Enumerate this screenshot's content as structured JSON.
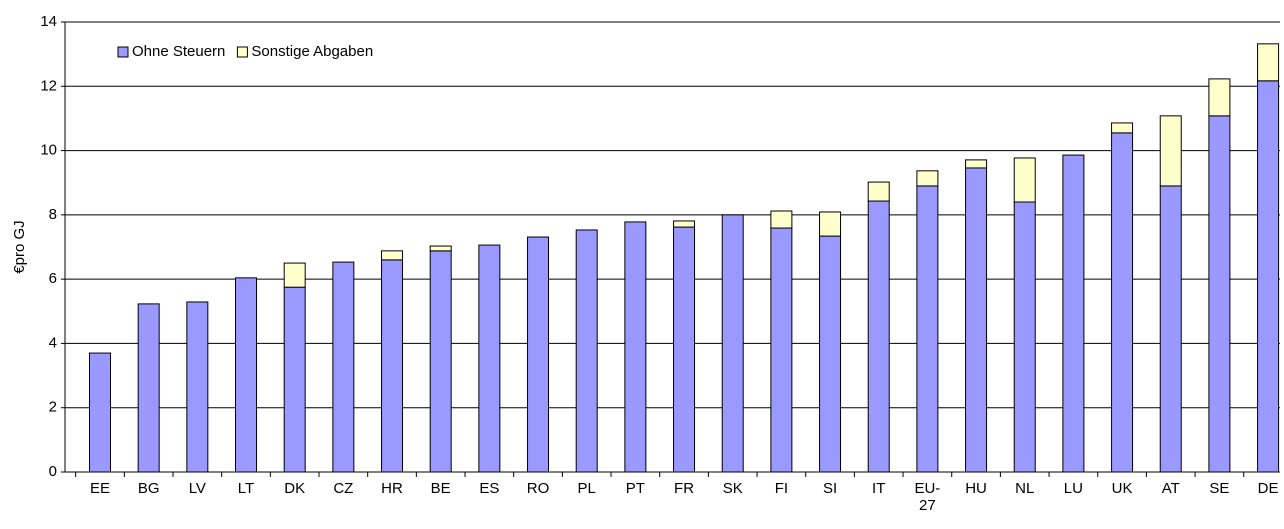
{
  "chart_data": {
    "type": "bar",
    "stacked": true,
    "y_label": "€pro GJ",
    "categories": [
      "EE",
      "BG",
      "LV",
      "LT",
      "DK",
      "CZ",
      "HR",
      "BE",
      "ES",
      "RO",
      "PL",
      "PT",
      "FR",
      "SK",
      "FI",
      "SI",
      "IT",
      "EU-27",
      "HU",
      "NL",
      "LU",
      "UK",
      "AT",
      "SE",
      "DE"
    ],
    "series": [
      {
        "name": "Ohne Steuern",
        "color": "#9999ff",
        "values": [
          3.7,
          5.23,
          5.29,
          6.04,
          5.75,
          6.53,
          6.6,
          6.88,
          7.06,
          7.31,
          7.53,
          7.78,
          7.62,
          8.0,
          7.59,
          7.34,
          8.43,
          8.9,
          9.46,
          8.4,
          9.86,
          10.55,
          8.9,
          11.08,
          12.17
        ]
      },
      {
        "name": "Sonstige Abgaben",
        "color": "#ffffcc",
        "values": [
          0,
          0,
          0,
          0,
          0.75,
          0,
          0.28,
          0.15,
          0,
          0,
          0,
          0,
          0.19,
          0,
          0.53,
          0.75,
          0.59,
          0.47,
          0.25,
          1.37,
          0,
          0.31,
          2.18,
          1.15,
          1.15
        ]
      }
    ],
    "ylim": [
      0,
      14
    ],
    "yticks": [
      0,
      2,
      4,
      6,
      8,
      10,
      12,
      14
    ],
    "grid": true,
    "legend": "top-left"
  }
}
